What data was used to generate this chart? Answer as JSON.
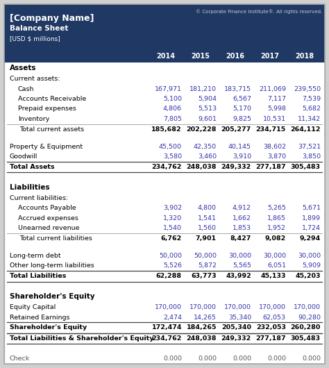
{
  "company_name": "[Company Name]",
  "subtitle": "Balance Sheet",
  "currency": "[USD $ millions]",
  "copyright": "© Corporate Finance Institute®. All rights reserved.",
  "years": [
    "2014",
    "2015",
    "2016",
    "2017",
    "2018"
  ],
  "header_bg": "#1F3864",
  "header_fg": "#FFFFFF",
  "data_color": "#3333AA",
  "bold_color": "#000000",
  "section_color": "#000000",
  "bg_color": "#FFFFFF",
  "outer_bg": "#D0D0D0",
  "rows": [
    {
      "label": "Assets",
      "values": [
        "",
        "",
        "",
        "",
        ""
      ],
      "style": "section_header",
      "indent": 0
    },
    {
      "label": "Current assets:",
      "values": [
        "",
        "",
        "",
        "",
        ""
      ],
      "style": "subsection",
      "indent": 0
    },
    {
      "label": "Cash",
      "values": [
        "167,971",
        "181,210",
        "183,715",
        "211,069",
        "239,550"
      ],
      "style": "data",
      "indent": 1
    },
    {
      "label": "Accounts Receivable",
      "values": [
        "5,100",
        "5,904",
        "6,567",
        "7,117",
        "7,539"
      ],
      "style": "data",
      "indent": 1
    },
    {
      "label": "Prepaid expenses",
      "values": [
        "4,806",
        "5,513",
        "5,170",
        "5,998",
        "5,682"
      ],
      "style": "data",
      "indent": 1
    },
    {
      "label": "Inventory",
      "values": [
        "7,805",
        "9,601",
        "9,825",
        "10,531",
        "11,342"
      ],
      "style": "data",
      "indent": 1
    },
    {
      "label": "Total current assets",
      "values": [
        "185,682",
        "202,228",
        "205,277",
        "234,715",
        "264,112"
      ],
      "style": "subtotal",
      "indent": 0
    },
    {
      "label": "",
      "values": [
        "",
        "",
        "",
        "",
        ""
      ],
      "style": "spacer",
      "indent": 0
    },
    {
      "label": "Property & Equipment",
      "values": [
        "45,500",
        "42,350",
        "40,145",
        "38,602",
        "37,521"
      ],
      "style": "data",
      "indent": 0
    },
    {
      "label": "Goodwill",
      "values": [
        "3,580",
        "3,460",
        "3,910",
        "3,870",
        "3,850"
      ],
      "style": "data",
      "indent": 0
    },
    {
      "label": "Total Assets",
      "values": [
        "234,762",
        "248,038",
        "249,332",
        "277,187",
        "305,483"
      ],
      "style": "total",
      "indent": 0
    },
    {
      "label": "",
      "values": [
        "",
        "",
        "",
        "",
        ""
      ],
      "style": "spacer2",
      "indent": 0
    },
    {
      "label": "Liabilities",
      "values": [
        "",
        "",
        "",
        "",
        ""
      ],
      "style": "section_header",
      "indent": 0
    },
    {
      "label": "Current liabilities:",
      "values": [
        "",
        "",
        "",
        "",
        ""
      ],
      "style": "subsection",
      "indent": 0
    },
    {
      "label": "Accounts Payable",
      "values": [
        "3,902",
        "4,800",
        "4,912",
        "5,265",
        "5,671"
      ],
      "style": "data",
      "indent": 1
    },
    {
      "label": "Accrued expenses",
      "values": [
        "1,320",
        "1,541",
        "1,662",
        "1,865",
        "1,899"
      ],
      "style": "data",
      "indent": 1
    },
    {
      "label": "Unearned revenue",
      "values": [
        "1,540",
        "1,560",
        "1,853",
        "1,952",
        "1,724"
      ],
      "style": "data",
      "indent": 1
    },
    {
      "label": "Total current liabilities",
      "values": [
        "6,762",
        "7,901",
        "8,427",
        "9,082",
        "9,294"
      ],
      "style": "subtotal",
      "indent": 0
    },
    {
      "label": "",
      "values": [
        "",
        "",
        "",
        "",
        ""
      ],
      "style": "spacer",
      "indent": 0
    },
    {
      "label": "Long-term debt",
      "values": [
        "50,000",
        "50,000",
        "30,000",
        "30,000",
        "30,000"
      ],
      "style": "data",
      "indent": 0
    },
    {
      "label": "Other long-term liabilities",
      "values": [
        "5,526",
        "5,872",
        "5,565",
        "6,051",
        "5,909"
      ],
      "style": "data",
      "indent": 0
    },
    {
      "label": "Total Liabilities",
      "values": [
        "62,288",
        "63,773",
        "43,992",
        "45,133",
        "45,203"
      ],
      "style": "total",
      "indent": 0
    },
    {
      "label": "",
      "values": [
        "",
        "",
        "",
        "",
        ""
      ],
      "style": "spacer2",
      "indent": 0
    },
    {
      "label": "Shareholder's Equity",
      "values": [
        "",
        "",
        "",
        "",
        ""
      ],
      "style": "section_header",
      "indent": 0
    },
    {
      "label": "Equity Capital",
      "values": [
        "170,000",
        "170,000",
        "170,000",
        "170,000",
        "170,000"
      ],
      "style": "data",
      "indent": 0
    },
    {
      "label": "Retained Earnings",
      "values": [
        "2,474",
        "14,265",
        "35,340",
        "62,053",
        "90,280"
      ],
      "style": "data",
      "indent": 0
    },
    {
      "label": "Shareholder's Equity",
      "values": [
        "172,474",
        "184,265",
        "205,340",
        "232,053",
        "260,280"
      ],
      "style": "total",
      "indent": 0
    },
    {
      "label": "Total Liabilities & Shareholder's Equity",
      "values": [
        "234,762",
        "248,038",
        "249,332",
        "277,187",
        "305,483"
      ],
      "style": "total",
      "indent": 0
    },
    {
      "label": "",
      "values": [
        "",
        "",
        "",
        "",
        ""
      ],
      "style": "spacer2",
      "indent": 0
    },
    {
      "label": "Check",
      "values": [
        "0.000",
        "0.000",
        "0.000",
        "0.000",
        "0.000"
      ],
      "style": "check",
      "indent": 0
    }
  ]
}
